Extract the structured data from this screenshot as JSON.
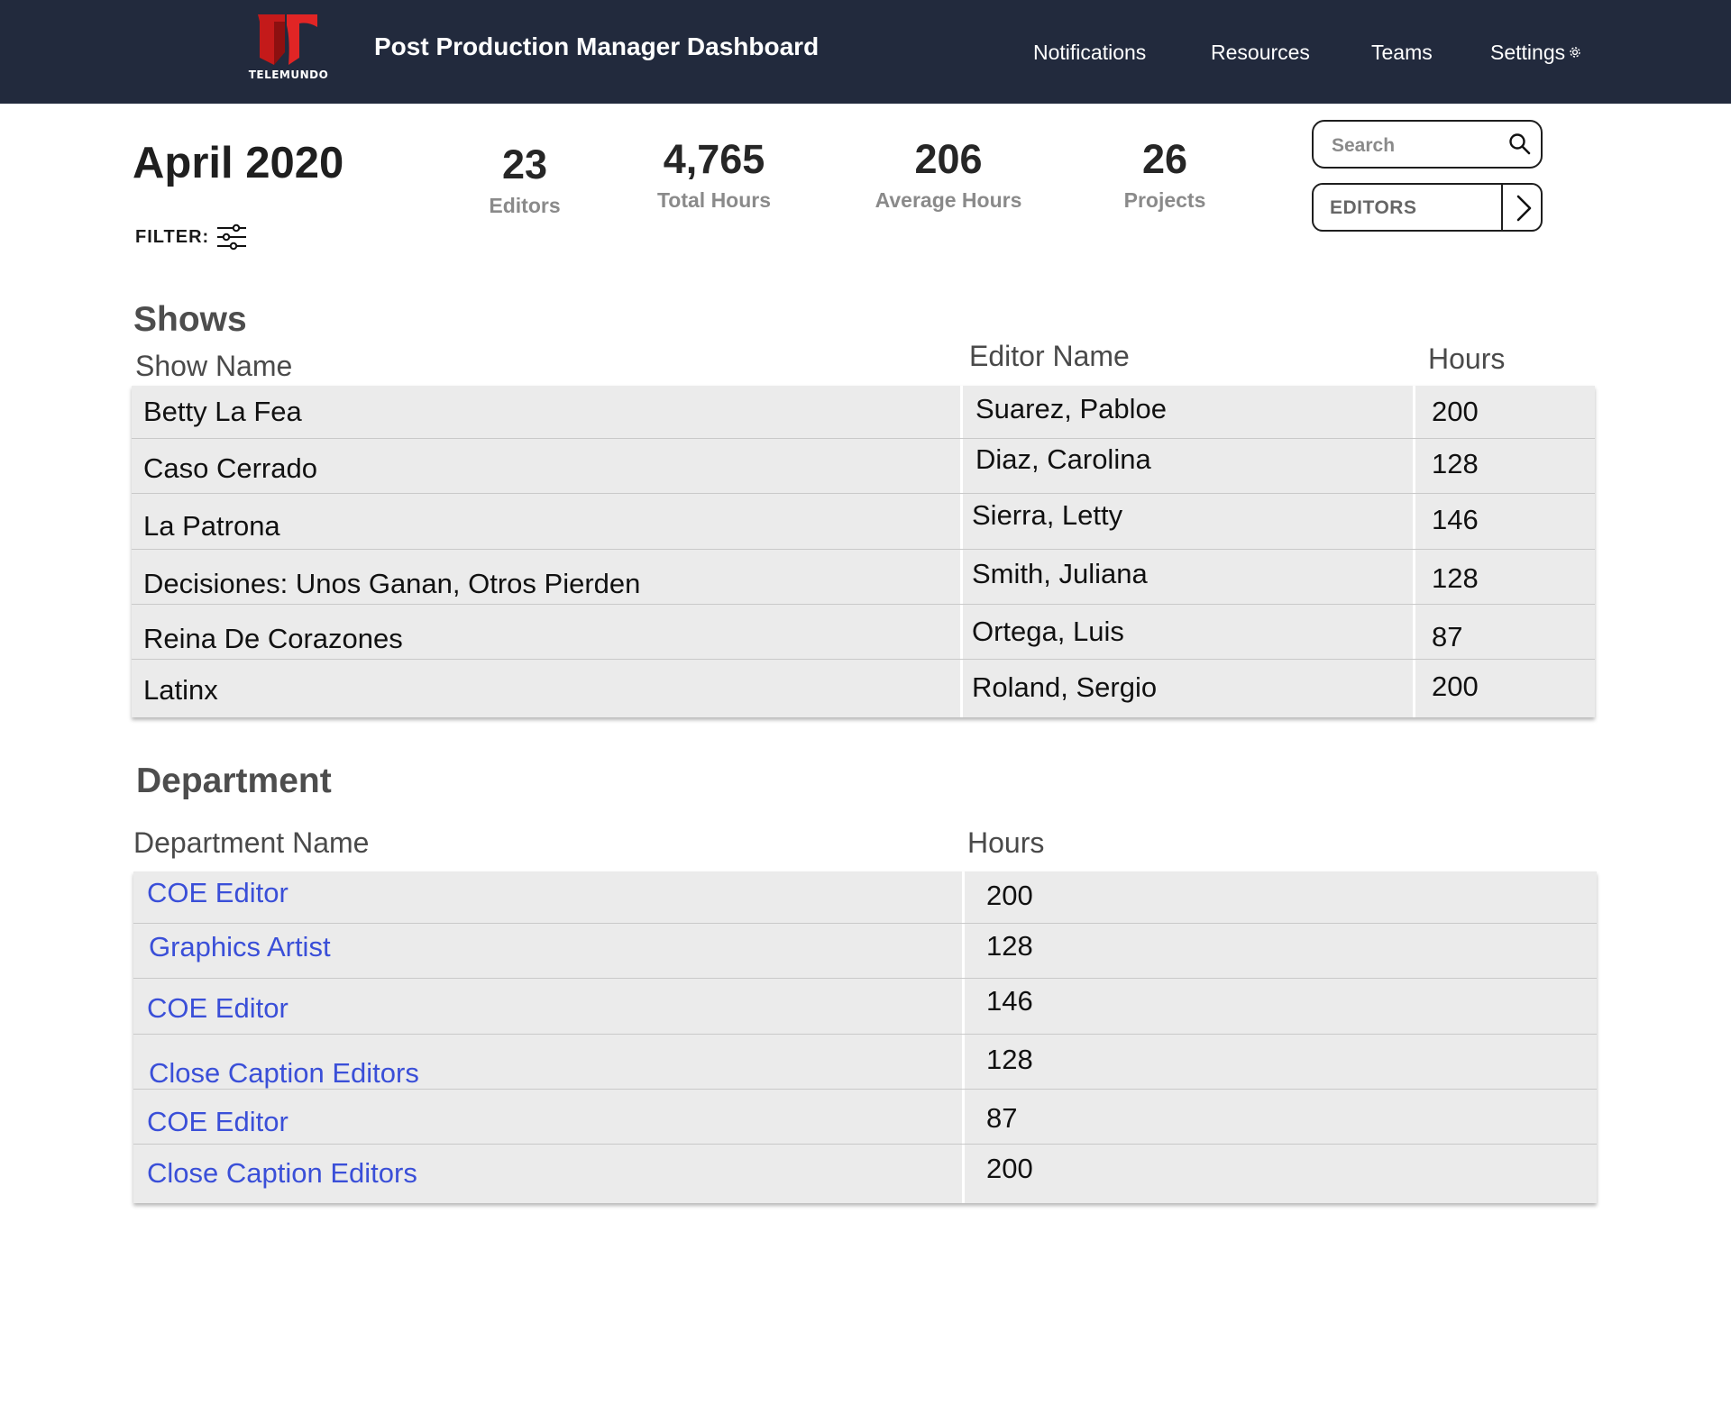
{
  "header": {
    "logo_text": "TELEMUNDO",
    "title": "Post Production Manager Dashboard",
    "nav": {
      "notifications": "Notifications",
      "resources": "Resources",
      "teams": "Teams",
      "settings": "Settings"
    },
    "brand_color": "#d6201f",
    "bar_color": "#222a3d"
  },
  "summary": {
    "month": "April 2020",
    "stats": {
      "editors": {
        "value": "23",
        "label": "Editors"
      },
      "total_hours": {
        "value": "4,765",
        "label": "Total Hours"
      },
      "average_hours": {
        "value": "206",
        "label": "Average Hours"
      },
      "projects": {
        "value": "26",
        "label": "Projects"
      }
    },
    "filter_label": "FILTER:",
    "search": {
      "placeholder": "Search",
      "value": ""
    },
    "editors_dropdown": {
      "selected": "EDITORS"
    }
  },
  "shows": {
    "title": "Shows",
    "columns": {
      "show_name": "Show Name",
      "editor_name": "Editor Name",
      "hours": "Hours"
    },
    "rows": [
      {
        "show": "Betty La Fea",
        "editor": "Suarez, Pabloe",
        "hours": "200"
      },
      {
        "show": "Caso Cerrado",
        "editor": "Diaz, Carolina",
        "hours": "128"
      },
      {
        "show": "La Patrona",
        "editor": "Sierra, Letty",
        "hours": "146"
      },
      {
        "show": "Decisiones: Unos Ganan, Otros Pierden",
        "editor": "Smith, Juliana",
        "hours": "128"
      },
      {
        "show": "Reina De Corazones",
        "editor": "Ortega, Luis",
        "hours": "87"
      },
      {
        "show": "Latinx",
        "editor": "Roland, Sergio",
        "hours": "200"
      }
    ]
  },
  "department": {
    "title": "Department",
    "columns": {
      "department_name": "Department Name",
      "hours": "Hours"
    },
    "rows": [
      {
        "name": "COE Editor",
        "hours": "200"
      },
      {
        "name": "Graphics Artist",
        "hours": "128"
      },
      {
        "name": "COE Editor",
        "hours": "146"
      },
      {
        "name": "Close Caption Editors",
        "hours": "128"
      },
      {
        "name": "COE Editor",
        "hours": "87"
      },
      {
        "name": "Close Caption Editors",
        "hours": "200"
      }
    ],
    "link_color": "#3a4fd8"
  }
}
